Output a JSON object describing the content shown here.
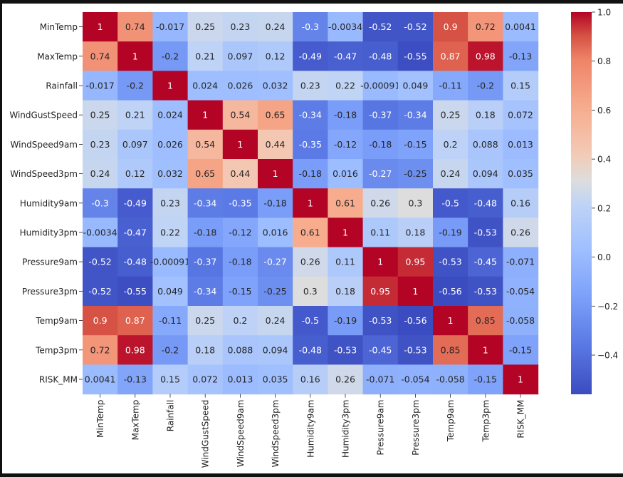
{
  "chart_data": {
    "type": "heatmap",
    "title": "",
    "colormap": "coolwarm",
    "colors": {
      "low": "#3b4cc0",
      "mid": "#dddddd",
      "high": "#b40426"
    },
    "vmin": -0.56,
    "vmax": 1.0,
    "rows": [
      "MinTemp",
      "MaxTemp",
      "Rainfall",
      "WindGustSpeed",
      "WindSpeed9am",
      "WindSpeed3pm",
      "Humidity9am",
      "Humidity3pm",
      "Pressure9am",
      "Pressure3pm",
      "Temp9am",
      "Temp3pm",
      "RISK_MM"
    ],
    "columns": [
      "MinTemp",
      "MaxTemp",
      "Rainfall",
      "WindGustSpeed",
      "WindSpeed9am",
      "WindSpeed3pm",
      "Humidity9am",
      "Humidity3pm",
      "Pressure9am",
      "Pressure3pm",
      "Temp9am",
      "Temp3pm",
      "RISK_MM"
    ],
    "values": [
      [
        1,
        0.74,
        -0.017,
        0.25,
        0.23,
        0.24,
        -0.3,
        -0.0034,
        -0.52,
        -0.52,
        0.9,
        0.72,
        0.0041
      ],
      [
        0.74,
        1,
        -0.2,
        0.21,
        0.097,
        0.12,
        -0.49,
        -0.47,
        -0.48,
        -0.55,
        0.87,
        0.98,
        -0.13
      ],
      [
        -0.017,
        -0.2,
        1,
        0.024,
        0.026,
        0.032,
        0.23,
        0.22,
        -0.00091,
        0.049,
        -0.11,
        -0.2,
        0.15
      ],
      [
        0.25,
        0.21,
        0.024,
        1,
        0.54,
        0.65,
        -0.34,
        -0.18,
        -0.37,
        -0.34,
        0.25,
        0.18,
        0.072
      ],
      [
        0.23,
        0.097,
        0.026,
        0.54,
        1,
        0.44,
        -0.35,
        -0.12,
        -0.18,
        -0.15,
        0.2,
        0.088,
        0.013
      ],
      [
        0.24,
        0.12,
        0.032,
        0.65,
        0.44,
        1,
        -0.18,
        0.016,
        -0.27,
        -0.25,
        0.24,
        0.094,
        0.035
      ],
      [
        -0.3,
        -0.49,
        0.23,
        -0.34,
        -0.35,
        -0.18,
        1,
        0.61,
        0.26,
        0.3,
        -0.5,
        -0.48,
        0.16
      ],
      [
        -0.0034,
        -0.47,
        0.22,
        -0.18,
        -0.12,
        0.016,
        0.61,
        1,
        0.11,
        0.18,
        -0.19,
        -0.53,
        0.26
      ],
      [
        -0.52,
        -0.48,
        -0.00091,
        -0.37,
        -0.18,
        -0.27,
        0.26,
        0.11,
        1,
        0.95,
        -0.53,
        -0.45,
        -0.071
      ],
      [
        -0.52,
        -0.55,
        0.049,
        -0.34,
        -0.15,
        -0.25,
        0.3,
        0.18,
        0.95,
        1,
        -0.56,
        -0.53,
        -0.054
      ],
      [
        0.9,
        0.87,
        -0.11,
        0.25,
        0.2,
        0.24,
        -0.5,
        -0.19,
        -0.53,
        -0.56,
        1,
        0.85,
        -0.058
      ],
      [
        0.72,
        0.98,
        -0.2,
        0.18,
        0.088,
        0.094,
        -0.48,
        -0.53,
        -0.45,
        -0.53,
        0.85,
        1,
        -0.15
      ],
      [
        0.0041,
        -0.13,
        0.15,
        0.072,
        0.013,
        0.035,
        0.16,
        0.26,
        -0.071,
        -0.054,
        -0.058,
        -0.15,
        1
      ]
    ],
    "colorbar": {
      "ticks": [
        1.0,
        0.8,
        0.6,
        0.4,
        0.2,
        0.0,
        -0.2,
        -0.4
      ],
      "tick_labels": [
        "1.0",
        "0.8",
        "0.6",
        "0.4",
        "0.2",
        "0.0",
        "−0.2",
        "−0.4"
      ]
    }
  }
}
